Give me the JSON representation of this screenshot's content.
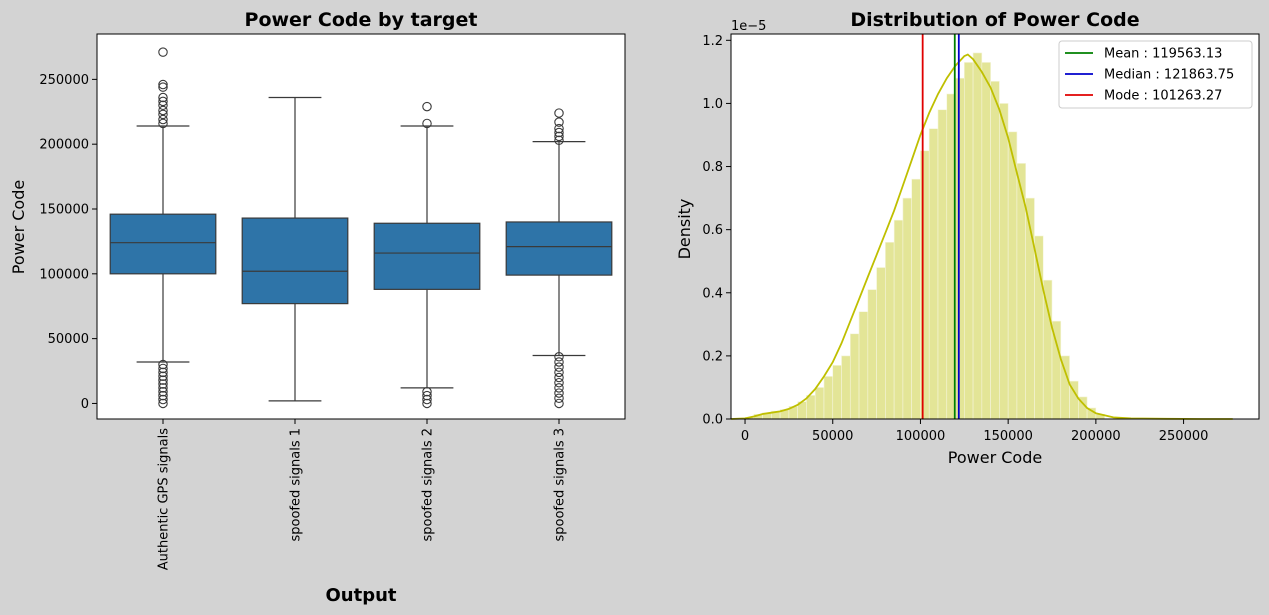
{
  "chart_data": [
    {
      "type": "box",
      "title": "Power Code by target",
      "xlabel": "Output",
      "ylabel": "Power Code",
      "ylim": [
        -12000,
        285000
      ],
      "yticks": [
        0,
        50000,
        100000,
        150000,
        200000,
        250000
      ],
      "ytick_labels": [
        "0",
        "50000",
        "100000",
        "150000",
        "200000",
        "250000"
      ],
      "box_color": "#2e74a8",
      "grid": false,
      "categories": [
        "Authentic GPS signals",
        "spoofed signals 1",
        "spoofed signals 2",
        "spoofed signals 3"
      ],
      "boxes": [
        {
          "whisker_low": 32000,
          "q1": 100000,
          "median": 124000,
          "q3": 146000,
          "whisker_high": 214000,
          "outliers_high": [
            216000,
            219000,
            223000,
            226000,
            230000,
            233000,
            236000,
            244000,
            246000,
            271000
          ],
          "outliers_low": [
            0,
            3000,
            6000,
            9000,
            12000,
            15000,
            18000,
            21000,
            24000,
            27000,
            30000
          ]
        },
        {
          "whisker_low": 2000,
          "q1": 77000,
          "median": 102000,
          "q3": 143000,
          "whisker_high": 236000,
          "outliers_high": [],
          "outliers_low": []
        },
        {
          "whisker_low": 12000,
          "q1": 88000,
          "median": 116000,
          "q3": 139000,
          "whisker_high": 214000,
          "outliers_high": [
            216000,
            229000
          ],
          "outliers_low": [
            0,
            3000,
            6000,
            9000
          ]
        },
        {
          "whisker_low": 37000,
          "q1": 99000,
          "median": 121000,
          "q3": 140000,
          "whisker_high": 202000,
          "outliers_high": [
            203000,
            206000,
            209000,
            212000,
            217000,
            224000
          ],
          "outliers_low": [
            0,
            4000,
            8000,
            12000,
            16000,
            20000,
            24000,
            28000,
            32000,
            36000
          ]
        }
      ]
    },
    {
      "type": "histogram",
      "title": "Distribution of Power Code",
      "xlabel": "Power Code",
      "ylabel": "Density",
      "y_scale_label": "1e−5",
      "xlim": [
        -8000,
        293000
      ],
      "ylim": [
        0,
        1.22
      ],
      "xticks": [
        0,
        50000,
        100000,
        150000,
        200000,
        250000
      ],
      "xtick_labels": [
        "0",
        "50000",
        "100000",
        "150000",
        "200000",
        "250000"
      ],
      "yticks": [
        0,
        0.2,
        0.4,
        0.6,
        0.8,
        1.0,
        1.2
      ],
      "ytick_labels": [
        "0.0",
        "0.2",
        "0.4",
        "0.6",
        "0.8",
        "1.0",
        "1.2"
      ],
      "bar_color": "#e3e597",
      "kde_color": "#bfbf00",
      "grid": false,
      "bins_edges_start": 0,
      "bin_width": 5000,
      "bin_values": [
        0.005,
        0.015,
        0.02,
        0.025,
        0.03,
        0.04,
        0.055,
        0.075,
        0.1,
        0.135,
        0.17,
        0.2,
        0.27,
        0.34,
        0.41,
        0.48,
        0.56,
        0.63,
        0.7,
        0.76,
        0.85,
        0.92,
        0.98,
        1.03,
        1.08,
        1.13,
        1.16,
        1.13,
        1.07,
        1.0,
        0.91,
        0.81,
        0.7,
        0.58,
        0.44,
        0.31,
        0.2,
        0.12,
        0.07,
        0.035,
        0.015
      ],
      "kde_x": [
        -8000,
        0,
        5000,
        10000,
        15000,
        20000,
        25000,
        30000,
        35000,
        40000,
        45000,
        50000,
        55000,
        60000,
        65000,
        70000,
        75000,
        80000,
        85000,
        90000,
        95000,
        100000,
        105000,
        110000,
        115000,
        120000,
        125000,
        127000,
        130000,
        135000,
        140000,
        145000,
        150000,
        155000,
        160000,
        165000,
        170000,
        175000,
        180000,
        185000,
        190000,
        195000,
        200000,
        210000,
        220000,
        240000,
        260000,
        278000
      ],
      "kde_y": [
        0,
        0.002,
        0.008,
        0.016,
        0.02,
        0.024,
        0.032,
        0.045,
        0.065,
        0.095,
        0.135,
        0.18,
        0.24,
        0.31,
        0.38,
        0.45,
        0.52,
        0.59,
        0.66,
        0.74,
        0.82,
        0.9,
        0.97,
        1.03,
        1.08,
        1.12,
        1.15,
        1.155,
        1.14,
        1.1,
        1.05,
        0.98,
        0.89,
        0.78,
        0.67,
        0.54,
        0.41,
        0.29,
        0.19,
        0.11,
        0.065,
        0.035,
        0.018,
        0.005,
        0.002,
        0.0005,
        0.0001,
        0
      ],
      "vlines": [
        {
          "name": "Mean",
          "label": "Mean :  119563.13",
          "value": 119563.13,
          "color": "#008000"
        },
        {
          "name": "Median",
          "label": "Median :  121863.75",
          "value": 121863.75,
          "color": "#0000cc"
        },
        {
          "name": "Mode",
          "label": "Mode :  101263.27",
          "value": 101263.27,
          "color": "#e00000"
        }
      ],
      "legend_position": "top-right"
    }
  ]
}
